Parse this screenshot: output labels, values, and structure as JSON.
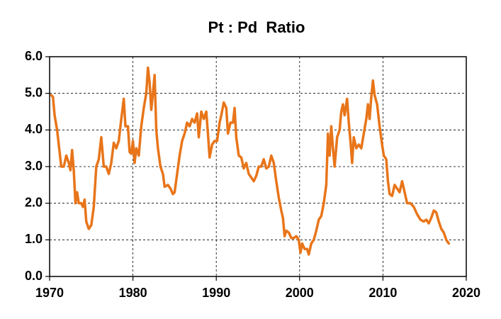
{
  "chart_data": {
    "type": "line",
    "title": "Pt : Pd  Ratio",
    "xlim": [
      1970,
      2020
    ],
    "xticks": [
      1970,
      1980,
      1990,
      2000,
      2010,
      2020
    ],
    "ylim": [
      0,
      6
    ],
    "yticks": [
      {
        "value": 0,
        "label": "0.0"
      },
      {
        "value": 1,
        "label": "1.0"
      },
      {
        "value": 2,
        "label": "2.0"
      },
      {
        "value": 3,
        "label": "3.0"
      },
      {
        "value": 4,
        "label": "4.0"
      },
      {
        "value": 5,
        "label": "5.0"
      },
      {
        "value": 6,
        "label": "6.0"
      }
    ],
    "grid": true,
    "color": "#e8751a",
    "x": [
      1970.2,
      1970.4,
      1970.6,
      1970.9,
      1971.2,
      1971.4,
      1971.7,
      1972.0,
      1972.3,
      1972.5,
      1972.7,
      1972.9,
      1973.1,
      1973.3,
      1973.5,
      1973.8,
      1974.0,
      1974.2,
      1974.4,
      1974.7,
      1975.0,
      1975.3,
      1975.6,
      1975.9,
      1976.2,
      1976.5,
      1976.8,
      1977.1,
      1977.4,
      1977.7,
      1978.0,
      1978.3,
      1978.6,
      1978.9,
      1979.1,
      1979.4,
      1979.6,
      1979.8,
      1980.0,
      1980.2,
      1980.4,
      1980.7,
      1981.0,
      1981.3,
      1981.6,
      1981.8,
      1982.0,
      1982.2,
      1982.4,
      1982.6,
      1982.8,
      1983.0,
      1983.3,
      1983.6,
      1983.8,
      1984.2,
      1984.5,
      1984.8,
      1985.0,
      1985.3,
      1985.6,
      1985.9,
      1986.2,
      1986.5,
      1986.8,
      1987.1,
      1987.4,
      1987.7,
      1987.9,
      1988.2,
      1988.5,
      1988.8,
      1989.0,
      1989.2,
      1989.5,
      1989.8,
      1990.1,
      1990.4,
      1990.6,
      1990.9,
      1991.2,
      1991.4,
      1991.7,
      1992.0,
      1992.2,
      1992.4,
      1992.7,
      1993.0,
      1993.3,
      1993.6,
      1993.9,
      1994.2,
      1994.5,
      1994.8,
      1995.1,
      1995.4,
      1995.7,
      1996.0,
      1996.3,
      1996.6,
      1996.9,
      1997.2,
      1997.5,
      1997.8,
      1998.0,
      1998.2,
      1998.4,
      1998.7,
      1999.0,
      1999.3,
      1999.6,
      1999.9,
      2000.1,
      2000.3,
      2000.6,
      2000.9,
      2001.1,
      2001.4,
      2001.7,
      2002.0,
      2002.3,
      2002.6,
      2002.9,
      2003.2,
      2003.4,
      2003.6,
      2003.8,
      2004.0,
      2004.2,
      2004.5,
      2004.8,
      2005.0,
      2005.2,
      2005.4,
      2005.7,
      2005.9,
      2006.1,
      2006.3,
      2006.5,
      2006.8,
      2007.1,
      2007.4,
      2007.7,
      2008.0,
      2008.2,
      2008.4,
      2008.6,
      2008.8,
      2009.0,
      2009.3,
      2009.6,
      2009.9,
      2010.1,
      2010.4,
      2010.6,
      2010.8,
      2011.1,
      2011.4,
      2011.7,
      2012.0,
      2012.3,
      2012.6,
      2012.9,
      2013.3,
      2013.7,
      2014.1,
      2014.5,
      2014.9,
      2015.2,
      2015.5,
      2015.8,
      2016.1,
      2016.4,
      2016.7,
      2017.0,
      2017.3,
      2017.6,
      2017.9
    ],
    "values": [
      4.95,
      4.9,
      4.4,
      4.0,
      3.4,
      3.0,
      3.0,
      3.3,
      3.1,
      2.9,
      3.45,
      2.9,
      2.0,
      2.3,
      2.0,
      2.0,
      1.9,
      2.1,
      1.5,
      1.3,
      1.4,
      1.9,
      3.0,
      3.2,
      3.8,
      3.0,
      3.0,
      2.8,
      3.1,
      3.65,
      3.5,
      3.7,
      4.3,
      4.85,
      4.1,
      4.1,
      3.4,
      3.35,
      3.7,
      3.1,
      3.5,
      3.3,
      4.1,
      4.6,
      5.0,
      5.7,
      5.3,
      4.55,
      5.0,
      5.5,
      4.0,
      3.5,
      3.0,
      2.8,
      2.45,
      2.5,
      2.4,
      2.25,
      2.3,
      2.8,
      3.3,
      3.7,
      3.9,
      4.2,
      4.1,
      4.3,
      4.2,
      4.45,
      3.8,
      4.5,
      4.3,
      4.5,
      3.9,
      3.25,
      3.6,
      3.7,
      3.7,
      4.2,
      4.4,
      4.75,
      4.6,
      3.9,
      4.2,
      4.2,
      4.6,
      3.8,
      3.3,
      3.25,
      2.95,
      3.1,
      2.8,
      2.7,
      2.6,
      2.75,
      3.0,
      3.0,
      3.2,
      2.95,
      3.0,
      3.3,
      3.1,
      2.6,
      2.15,
      1.8,
      1.6,
      1.1,
      1.25,
      1.2,
      1.05,
      1.05,
      1.1,
      1.0,
      0.65,
      0.9,
      0.75,
      0.75,
      0.6,
      0.9,
      1.0,
      1.25,
      1.55,
      1.65,
      2.0,
      2.5,
      3.9,
      3.3,
      4.1,
      3.5,
      3.0,
      3.8,
      4.0,
      4.5,
      4.7,
      4.4,
      4.85,
      4.2,
      3.7,
      3.1,
      3.8,
      3.5,
      3.6,
      3.5,
      3.9,
      4.3,
      4.7,
      4.3,
      4.9,
      5.35,
      4.95,
      4.7,
      4.1,
      3.6,
      3.3,
      3.2,
      2.6,
      2.25,
      2.2,
      2.5,
      2.4,
      2.3,
      2.6,
      2.3,
      2.0,
      2.0,
      1.9,
      1.7,
      1.55,
      1.5,
      1.55,
      1.45,
      1.6,
      1.8,
      1.75,
      1.5,
      1.3,
      1.2,
      1.0,
      0.9
    ]
  }
}
